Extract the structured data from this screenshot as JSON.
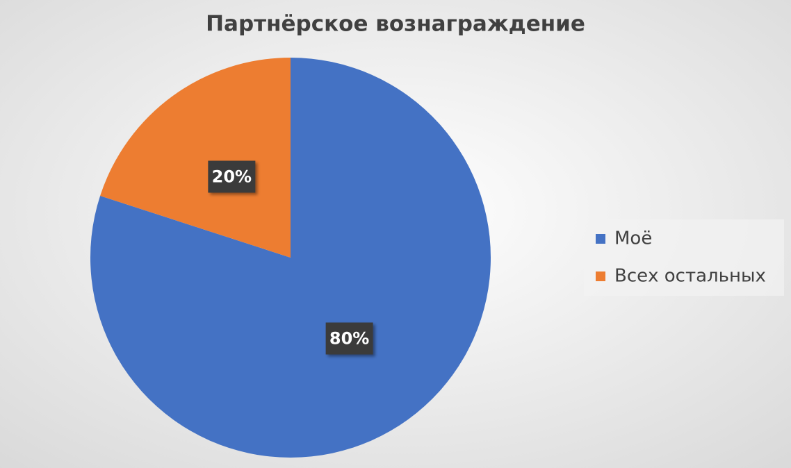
{
  "chart_data": {
    "type": "pie",
    "title": "Партнёрское вознаграждение",
    "categories": [
      "Моё",
      "Всех остальных"
    ],
    "values": [
      80,
      20
    ],
    "value_labels": [
      "80%",
      "20%"
    ],
    "colors": [
      "#4472c4",
      "#ed7d31"
    ],
    "legend": "right"
  }
}
